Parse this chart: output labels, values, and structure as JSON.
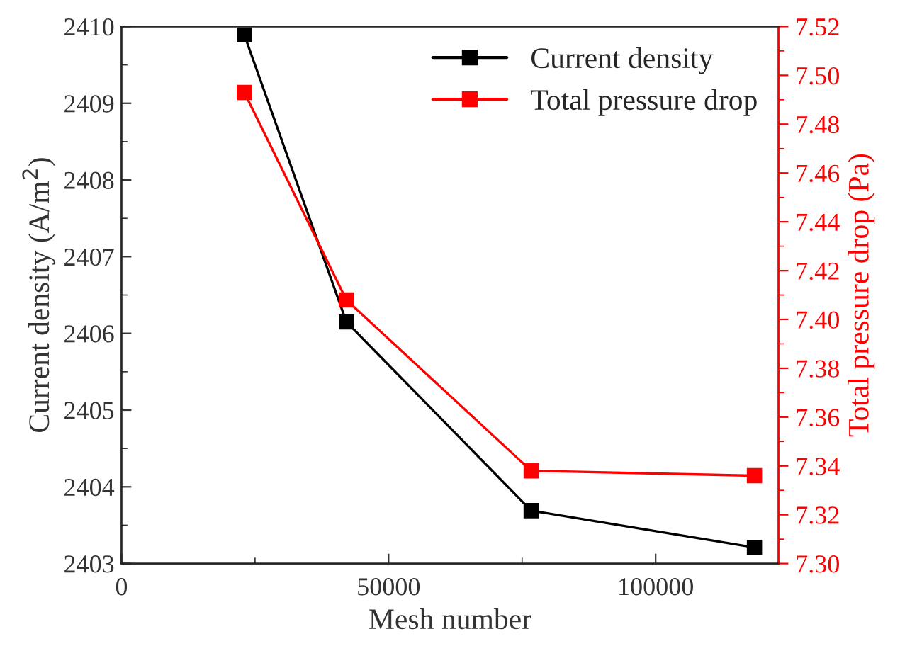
{
  "chart_data": {
    "type": "line",
    "xlabel": "Mesh number",
    "ylabel": "Current density (A/m$^{2}$)",
    "y2label": "Total pressure drop (Pa)",
    "x": [
      23000,
      42100,
      76700,
      118500
    ],
    "series": [
      {
        "name": "Current density",
        "color": "#000000",
        "values": [
          2409.89,
          2406.15,
          2403.69,
          2403.21
        ]
      },
      {
        "name": "Total pressure drop",
        "color": "#ff0000",
        "axis": "y2",
        "values": [
          7.493,
          7.408,
          7.338,
          7.336
        ]
      }
    ],
    "xlim": [
      0,
      123000
    ],
    "xticks": [
      0,
      50000,
      100000
    ],
    "ylim": [
      2403,
      2410
    ],
    "yticks": [
      2403,
      2404,
      2405,
      2406,
      2407,
      2408,
      2409,
      2410
    ],
    "y2lim": [
      7.3,
      7.52
    ],
    "y2ticks": [
      {
        "value": 7.3,
        "label": "7.30"
      },
      {
        "value": 7.32,
        "label": "7.32"
      },
      {
        "value": 7.34,
        "label": "7.34"
      },
      {
        "value": 7.36,
        "label": "7.36"
      },
      {
        "value": 7.38,
        "label": "7.38"
      },
      {
        "value": 7.4,
        "label": "7.40"
      },
      {
        "value": 7.42,
        "label": "7.42"
      },
      {
        "value": 7.44,
        "label": "7.44"
      },
      {
        "value": 7.46,
        "label": "7.46"
      },
      {
        "value": 7.48,
        "label": "7.48"
      },
      {
        "value": 7.5,
        "label": "7.50"
      },
      {
        "value": 7.52,
        "label": "7.52"
      }
    ],
    "legend": "top right",
    "marker": "square",
    "line_style": "solid",
    "grid": false
  }
}
